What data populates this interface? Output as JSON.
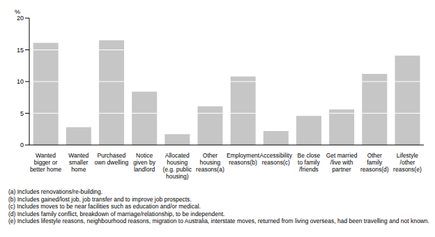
{
  "chart_data": {
    "type": "bar",
    "y_label": "%",
    "categories": [
      "Wanted\nbigger or\nbetter home",
      "Wanted\nsmaller\nhome",
      "Purchased\nown dwelling",
      "Notice\ngiven by\nlandlord",
      "Allocated\nhousing\n(e.g. public\nhousing)",
      "Other\nhousing\nreasons(a)",
      "Employment\nreasons(b)",
      "Accessibility\nreasons(c)",
      "Be close\nto family\n/friends",
      "Get married\n/live with\npartner",
      "Other\nfamily\nreasons(d)",
      "Lifestyle\n/other\nreasons(e)"
    ],
    "values": [
      16.1,
      2.8,
      16.5,
      8.4,
      1.7,
      6.1,
      10.8,
      2.2,
      4.6,
      5.6,
      11.2,
      14.1
    ],
    "color": "#c6c6c6",
    "ylim": [
      0,
      20
    ],
    "yticks": [
      0,
      5,
      10,
      15,
      20
    ],
    "grid": true,
    "footnotes": [
      "(a) Includes renovations/re-building.",
      "(b) Includes gained/lost job, job transfer and to improve job prospects.",
      "(c) Includes moves to be near facilities such as education and/or medical.",
      "(d) Includes family conflict, breakdown of marriage/relationship, to be independent.",
      "(e) Includes lifestyle reasons, neighbourhood reasons, migration to Australia, interstate moves, returned from living overseas, had been travelling and not known."
    ]
  }
}
